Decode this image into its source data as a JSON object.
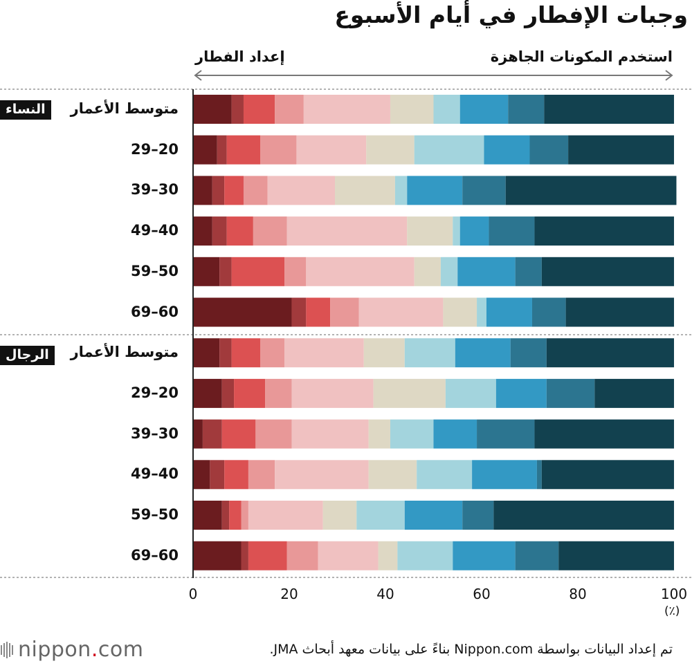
{
  "title": "وجبات الإفطار في أيام الأسبوع",
  "direction_labels": {
    "right": "استخدم المكونات الجاهزة",
    "left": "إعداد الفطار"
  },
  "groups": {
    "women": "النساء",
    "men": "الرجال"
  },
  "unit": "(٪)",
  "source": "تم إعداد البيانات بواسطة Nippon.com بناءً على بيانات معهد أبحاث JMA.",
  "logo": {
    "name": "nippon",
    "dot": ".",
    "suffix": "com"
  },
  "colors": [
    "#6b1c1f",
    "#a13a3c",
    "#dc5152",
    "#e89898",
    "#f0c1c1",
    "#ded8c4",
    "#a3d4dd",
    "#3399c4",
    "#2c7590",
    "#12414f"
  ],
  "chart_data": {
    "type": "bar",
    "orientation": "horizontal",
    "stacked": true,
    "xlim": [
      0,
      100
    ],
    "xticks": [
      0,
      20,
      40,
      60,
      80,
      100
    ],
    "categories": [
      "متوسط الأعمار",
      "20–29",
      "30–39",
      "40–49",
      "50–59",
      "60–69",
      "متوسط الأعمار",
      "20–29",
      "30–39",
      "40–49",
      "50–59",
      "60–69"
    ],
    "series": [
      {
        "values": [
          8,
          5,
          4,
          4,
          5.5,
          20.5,
          5.5,
          6,
          2,
          3.5,
          6,
          10
        ]
      },
      {
        "values": [
          2.5,
          2,
          2.5,
          3,
          2.5,
          3,
          2.5,
          2.5,
          4,
          3,
          1.5,
          1.5
        ]
      },
      {
        "values": [
          6.5,
          7,
          4,
          5.5,
          11,
          5,
          6,
          6.5,
          7,
          5,
          2.5,
          8
        ]
      },
      {
        "values": [
          6,
          7.5,
          5,
          7,
          4.5,
          6,
          5,
          5.5,
          7.5,
          5.5,
          1.5,
          6.5
        ]
      },
      {
        "values": [
          18,
          14.5,
          14,
          25,
          22.5,
          17.5,
          16.5,
          17,
          16,
          19.5,
          15.5,
          12.5
        ]
      },
      {
        "values": [
          9,
          10,
          12.5,
          9.5,
          5.5,
          7,
          8.5,
          15,
          4.5,
          10,
          7,
          4
        ]
      },
      {
        "values": [
          5.5,
          14.5,
          2.5,
          1.5,
          3.5,
          2,
          10.5,
          10.5,
          9,
          11.5,
          10,
          11.5
        ]
      },
      {
        "values": [
          10,
          9.5,
          11.5,
          6,
          12,
          9.5,
          11.5,
          10.5,
          9,
          13.5,
          12,
          13
        ]
      },
      {
        "values": [
          7.5,
          8,
          9,
          9.5,
          5.5,
          7,
          7.5,
          10,
          12,
          1,
          6.5,
          9
        ]
      },
      {
        "values": [
          27,
          22,
          35.5,
          29,
          27.5,
          22.5,
          26.5,
          16.5,
          29,
          27.5,
          37.5,
          24
        ]
      }
    ]
  }
}
